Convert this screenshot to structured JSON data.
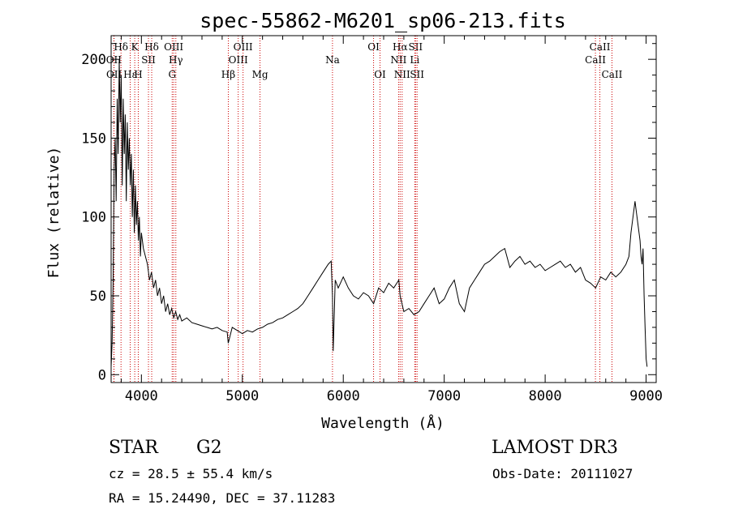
{
  "chart_data": {
    "type": "line",
    "title": "spec-55862-M6201_sp06-213.fits",
    "xlabel": "Wavelength (Å)",
    "ylabel": "Flux (relative)",
    "xlim": [
      3700,
      9100
    ],
    "ylim": [
      -5,
      215
    ],
    "grid": false,
    "x_ticks": [
      4000,
      5000,
      6000,
      7000,
      8000,
      9000
    ],
    "y_ticks": [
      0,
      50,
      100,
      150,
      200
    ],
    "series": [
      {
        "name": "flux",
        "x": [
          3700,
          3710,
          3720,
          3730,
          3740,
          3750,
          3760,
          3770,
          3780,
          3790,
          3800,
          3810,
          3820,
          3830,
          3840,
          3850,
          3860,
          3870,
          3880,
          3890,
          3900,
          3910,
          3920,
          3930,
          3940,
          3950,
          3960,
          3970,
          3980,
          3990,
          4000,
          4020,
          4040,
          4060,
          4080,
          4100,
          4120,
          4140,
          4160,
          4180,
          4200,
          4220,
          4240,
          4260,
          4280,
          4300,
          4320,
          4340,
          4360,
          4380,
          4400,
          4450,
          4500,
          4550,
          4600,
          4650,
          4700,
          4750,
          4800,
          4850,
          4860,
          4900,
          4950,
          5000,
          5050,
          5100,
          5150,
          5200,
          5250,
          5300,
          5350,
          5400,
          5450,
          5500,
          5550,
          5600,
          5650,
          5700,
          5750,
          5800,
          5850,
          5880,
          5893,
          5900,
          5920,
          5950,
          6000,
          6050,
          6100,
          6150,
          6200,
          6250,
          6300,
          6350,
          6400,
          6450,
          6500,
          6550,
          6563,
          6600,
          6650,
          6700,
          6750,
          6800,
          6850,
          6900,
          6950,
          7000,
          7050,
          7100,
          7150,
          7200,
          7250,
          7300,
          7350,
          7400,
          7450,
          7500,
          7550,
          7600,
          7650,
          7700,
          7750,
          7800,
          7850,
          7900,
          7950,
          8000,
          8050,
          8100,
          8150,
          8200,
          8250,
          8300,
          8350,
          8400,
          8450,
          8500,
          8550,
          8600,
          8650,
          8700,
          8750,
          8800,
          8830,
          8850,
          8870,
          8890,
          8900,
          8920,
          8940,
          8950,
          8960,
          8970,
          8980,
          8990,
          9000,
          9010
        ],
        "y": [
          5,
          20,
          60,
          130,
          150,
          110,
          175,
          140,
          200,
          160,
          190,
          120,
          175,
          140,
          165,
          110,
          160,
          130,
          150,
          120,
          140,
          100,
          130,
          90,
          120,
          95,
          110,
          85,
          100,
          75,
          90,
          80,
          75,
          70,
          60,
          65,
          55,
          60,
          50,
          55,
          45,
          50,
          40,
          45,
          38,
          42,
          36,
          40,
          35,
          38,
          34,
          36,
          33,
          32,
          31,
          30,
          29,
          30,
          28,
          27,
          20,
          30,
          28,
          26,
          28,
          27,
          29,
          30,
          32,
          33,
          35,
          36,
          38,
          40,
          42,
          45,
          50,
          55,
          60,
          65,
          70,
          72,
          50,
          15,
          60,
          55,
          62,
          55,
          50,
          48,
          52,
          50,
          45,
          55,
          52,
          58,
          55,
          60,
          50,
          40,
          42,
          38,
          40,
          45,
          50,
          55,
          45,
          48,
          55,
          60,
          45,
          40,
          55,
          60,
          65,
          70,
          72,
          75,
          78,
          80,
          68,
          72,
          75,
          70,
          72,
          68,
          70,
          66,
          68,
          70,
          72,
          68,
          70,
          65,
          68,
          60,
          58,
          55,
          62,
          60,
          65,
          62,
          65,
          70,
          75,
          90,
          100,
          110,
          105,
          95,
          85,
          75,
          70,
          80,
          50,
          30,
          10,
          5
        ]
      }
    ],
    "line_markers": [
      {
        "label": "Hδ",
        "x": 3798,
        "row": 1
      },
      {
        "label": "OII",
        "x": 3727,
        "row": 2
      },
      {
        "label": "OII",
        "x": 3729,
        "row": 3
      },
      {
        "label": "K",
        "x": 3934,
        "row": 1
      },
      {
        "label": "H",
        "x": 3969,
        "row": 3
      },
      {
        "label": "Hε",
        "x": 3889,
        "row": 3
      },
      {
        "label": "SII",
        "x": 4070,
        "row": 2
      },
      {
        "label": "Hδ",
        "x": 4102,
        "row": 1
      },
      {
        "label": "OIII",
        "x": 4320,
        "row": 1
      },
      {
        "label": "Hγ",
        "x": 4341,
        "row": 2
      },
      {
        "label": "G",
        "x": 4305,
        "row": 3
      },
      {
        "label": "Hβ",
        "x": 4861,
        "row": 3
      },
      {
        "label": "OIII",
        "x": 4959,
        "row": 2
      },
      {
        "label": "OIII",
        "x": 5007,
        "row": 1
      },
      {
        "label": "Mg",
        "x": 5175,
        "row": 3
      },
      {
        "label": "Na",
        "x": 5893,
        "row": 2
      },
      {
        "label": "OI",
        "x": 6300,
        "row": 1
      },
      {
        "label": "OI",
        "x": 6364,
        "row": 3
      },
      {
        "label": "Hα",
        "x": 6563,
        "row": 1
      },
      {
        "label": "NII",
        "x": 6548,
        "row": 2
      },
      {
        "label": "NII",
        "x": 6583,
        "row": 3
      },
      {
        "label": "SII",
        "x": 6716,
        "row": 1
      },
      {
        "label": "Li",
        "x": 6708,
        "row": 2
      },
      {
        "label": "SII",
        "x": 6731,
        "row": 3
      },
      {
        "label": "CaII",
        "x": 8542,
        "row": 1
      },
      {
        "label": "CaII",
        "x": 8498,
        "row": 2
      },
      {
        "label": "CaII",
        "x": 8662,
        "row": 3
      }
    ]
  },
  "info": {
    "object_type": "STAR",
    "subclass": "G2",
    "survey": "LAMOST DR3",
    "cz": "cz = 28.5 ± 55.4 km/s",
    "obs_date": "Obs-Date: 20111027",
    "coords": "RA =  15.24490, DEC =  37.11283"
  },
  "colors": {
    "line": "#000000",
    "marker": "#cc0000"
  }
}
